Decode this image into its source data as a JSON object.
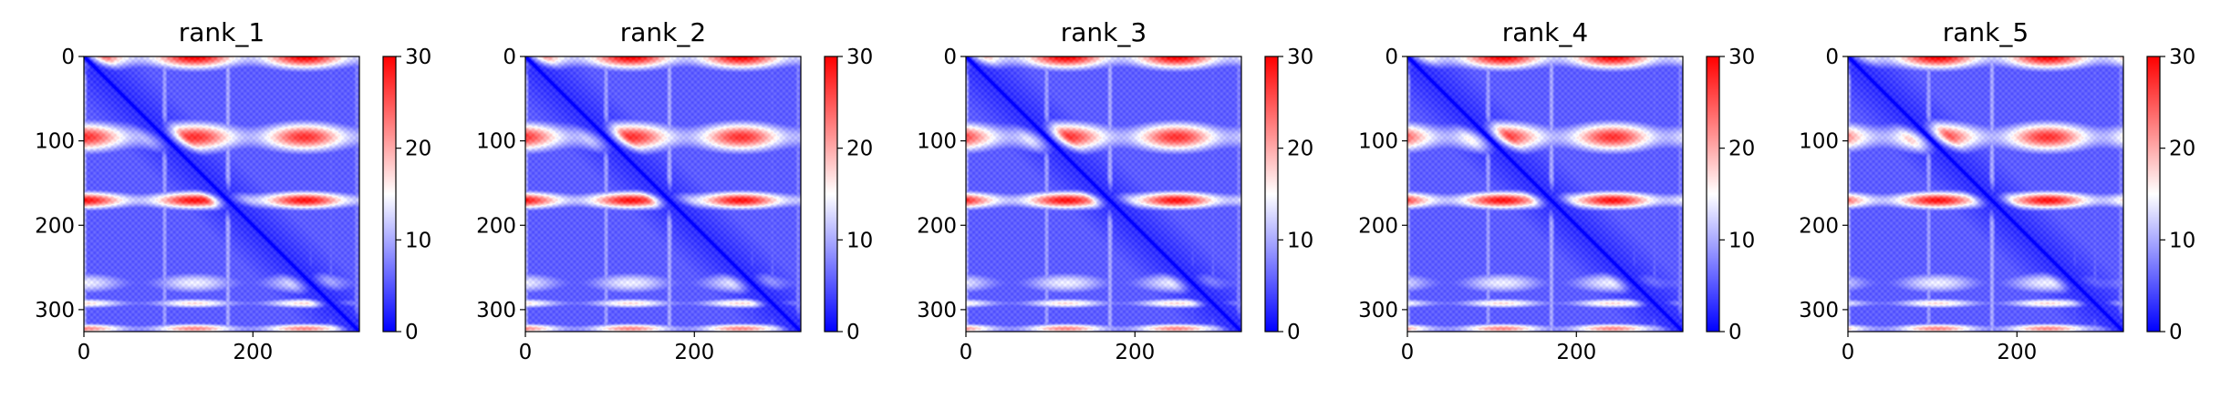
{
  "figure": {
    "layout": "1x5 heatmap grid"
  },
  "chart_data": [
    {
      "type": "heatmap",
      "title": "rank_1",
      "xlim": [
        0,
        326
      ],
      "ylim": [
        326,
        0
      ],
      "xticks": [
        0,
        200
      ],
      "yticks": [
        0,
        100,
        200,
        300
      ],
      "colorbar": {
        "ticks": [
          0,
          10,
          20,
          30
        ],
        "range": [
          0,
          30
        ],
        "colormap": "bwr"
      },
      "matrix_size": 326,
      "feature_bands": [
        {
          "center": 0,
          "width": 10,
          "value": 30
        },
        {
          "center": 95,
          "width": 12,
          "value": 27
        },
        {
          "center": 170,
          "width": 7,
          "value": 29
        },
        {
          "center": 268,
          "width": 9,
          "value": 14
        },
        {
          "center": 292,
          "width": 4,
          "value": 17
        },
        {
          "center": 322,
          "width": 4,
          "value": 22
        }
      ]
    },
    {
      "type": "heatmap",
      "title": "rank_2",
      "xlim": [
        0,
        326
      ],
      "ylim": [
        326,
        0
      ],
      "xticks": [
        0,
        200
      ],
      "yticks": [
        0,
        100,
        200,
        300
      ],
      "colorbar": {
        "ticks": [
          0,
          10,
          20,
          30
        ],
        "range": [
          0,
          30
        ],
        "colormap": "bwr"
      },
      "matrix_size": 326,
      "feature_bands": [
        {
          "center": 0,
          "width": 10,
          "value": 30
        },
        {
          "center": 95,
          "width": 12,
          "value": 27
        },
        {
          "center": 170,
          "width": 7,
          "value": 29
        },
        {
          "center": 268,
          "width": 9,
          "value": 14
        },
        {
          "center": 292,
          "width": 4,
          "value": 17
        },
        {
          "center": 322,
          "width": 4,
          "value": 22
        }
      ]
    },
    {
      "type": "heatmap",
      "title": "rank_3",
      "xlim": [
        0,
        326
      ],
      "ylim": [
        326,
        0
      ],
      "xticks": [
        0,
        200
      ],
      "yticks": [
        0,
        100,
        200,
        300
      ],
      "colorbar": {
        "ticks": [
          0,
          10,
          20,
          30
        ],
        "range": [
          0,
          30
        ],
        "colormap": "bwr"
      },
      "matrix_size": 326,
      "feature_bands": [
        {
          "center": 0,
          "width": 10,
          "value": 30
        },
        {
          "center": 95,
          "width": 12,
          "value": 27
        },
        {
          "center": 170,
          "width": 7,
          "value": 29
        },
        {
          "center": 268,
          "width": 9,
          "value": 14
        },
        {
          "center": 292,
          "width": 4,
          "value": 17
        },
        {
          "center": 322,
          "width": 4,
          "value": 22
        }
      ]
    },
    {
      "type": "heatmap",
      "title": "rank_4",
      "xlim": [
        0,
        326
      ],
      "ylim": [
        326,
        0
      ],
      "xticks": [
        0,
        200
      ],
      "yticks": [
        0,
        100,
        200,
        300
      ],
      "colorbar": {
        "ticks": [
          0,
          10,
          20,
          30
        ],
        "range": [
          0,
          30
        ],
        "colormap": "bwr"
      },
      "matrix_size": 326,
      "feature_bands": [
        {
          "center": 0,
          "width": 10,
          "value": 30
        },
        {
          "center": 95,
          "width": 12,
          "value": 27
        },
        {
          "center": 170,
          "width": 7,
          "value": 29
        },
        {
          "center": 268,
          "width": 9,
          "value": 14
        },
        {
          "center": 292,
          "width": 4,
          "value": 17
        },
        {
          "center": 322,
          "width": 4,
          "value": 22
        }
      ]
    },
    {
      "type": "heatmap",
      "title": "rank_5",
      "xlim": [
        0,
        326
      ],
      "ylim": [
        326,
        0
      ],
      "xticks": [
        0,
        200
      ],
      "yticks": [
        0,
        100,
        200,
        300
      ],
      "colorbar": {
        "ticks": [
          0,
          10,
          20,
          30
        ],
        "range": [
          0,
          30
        ],
        "colormap": "bwr"
      },
      "matrix_size": 326,
      "feature_bands": [
        {
          "center": 0,
          "width": 10,
          "value": 30
        },
        {
          "center": 95,
          "width": 12,
          "value": 27
        },
        {
          "center": 170,
          "width": 7,
          "value": 29
        },
        {
          "center": 268,
          "width": 9,
          "value": 14
        },
        {
          "center": 292,
          "width": 4,
          "value": 17
        },
        {
          "center": 322,
          "width": 4,
          "value": 22
        }
      ]
    }
  ],
  "colors": {
    "low": "#0000ff",
    "mid": "#ffffff",
    "high": "#ff0000"
  }
}
